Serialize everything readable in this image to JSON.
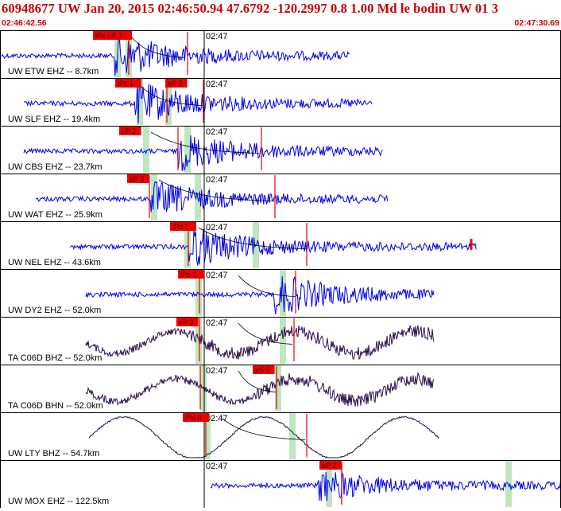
{
  "header": {
    "title": "60948677 UW Jan 20, 2015 02:46:50.94   47.6792 -120.2997  0.8 1.00 Md le bodin UW 01   3",
    "start_time": "02:46:42.56",
    "end_time": "02:47:30.69"
  },
  "time_marker": "02:47",
  "colors": {
    "title": "#cc0000",
    "trace_ehz": "#0000ee",
    "trace_broadband": "#2a0e4a",
    "pick_box": "#ee0000",
    "pick_window": "#bfe6bf",
    "border": "#000000"
  },
  "traces": [
    {
      "label": "UW ETW EHZ -- 8.7km",
      "picks": [
        "iPc eS 2"
      ],
      "type": "short"
    },
    {
      "label": "UW SLF EHZ -- 19.4km",
      "picks": [
        "iPc 1",
        "eS 2"
      ],
      "type": "short"
    },
    {
      "label": "UW CBS EHZ -- 23.7km",
      "picks": [
        "eP 2"
      ],
      "type": "short"
    },
    {
      "label": "UW WAT EHZ -- 25.9km",
      "picks": [
        "eP 3"
      ],
      "type": "short"
    },
    {
      "label": "UW NEL EHZ -- 43.6km",
      "picks": [
        "iPd 1"
      ],
      "type": "short"
    },
    {
      "label": "UW DY2 EHZ -- 52.0km",
      "picks": [
        "iPc 1"
      ],
      "type": "short"
    },
    {
      "label": "TA C06D BHZ -- 52.0km",
      "picks": [
        "eP 3"
      ],
      "type": "broad"
    },
    {
      "label": "TA C06D BHN -- 52.0km",
      "picks": [
        "eS 2"
      ],
      "type": "broad"
    },
    {
      "label": "UW LTY BHZ -- 54.7km",
      "picks": [
        "iPd 0"
      ],
      "type": "slow"
    },
    {
      "label": "UW MOX EHZ -- 122.5km",
      "picks": [
        "eP 2"
      ],
      "type": "short"
    }
  ]
}
